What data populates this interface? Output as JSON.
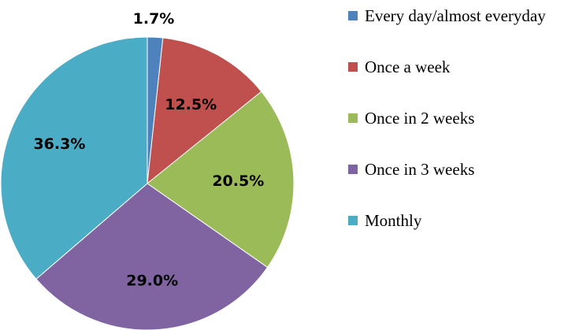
{
  "chart_data": {
    "type": "pie",
    "title": "",
    "legend_position": "right",
    "slices": [
      {
        "label": "Every day/almost everyday",
        "value": 1.7,
        "display": "1.7%",
        "color": "#4f81bd"
      },
      {
        "label": "Once a week",
        "value": 12.5,
        "display": "12.5%",
        "color": "#c0504d"
      },
      {
        "label": "Once in 2 weeks",
        "value": 20.5,
        "display": "20.5%",
        "color": "#9bbb59"
      },
      {
        "label": "Once in 3 weeks",
        "value": 29.0,
        "display": "29.0%",
        "color": "#8064a2"
      },
      {
        "label": "Monthly",
        "value": 36.3,
        "display": "36.3%",
        "color": "#4bacc6"
      }
    ]
  }
}
